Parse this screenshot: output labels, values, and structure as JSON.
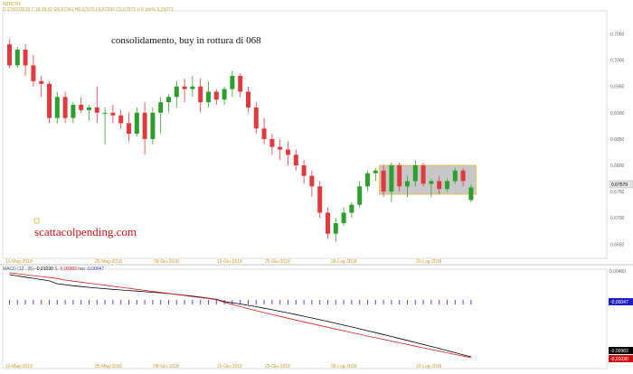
{
  "header": {
    "symbol": "NZDCHF",
    "date": "27/07/2018",
    "time": "16:18:01",
    "open_label": "O",
    "open": "0,67341",
    "high_label": "H",
    "high": "0,67625",
    "low_label": "L",
    "low": "0,67297",
    "close_label": "C",
    "close": "0,67579",
    "volume_label": "V",
    "volume": "0",
    "var_label": "Var%",
    "var": "0,25071"
  },
  "annotation": "consolidamento, buy in rottura di 068",
  "watermark": "scattacolpending.com",
  "price_axis": {
    "ticks": [
      "0,7050",
      "0,7000",
      "0,6950",
      "0,6900",
      "0,6850",
      "0,6800",
      "0,6750",
      "0,6700",
      "0,6650"
    ],
    "current_price_label": "0,67579"
  },
  "date_axis": {
    "ticks": [
      "10-Mag-2018",
      "25-Mag-2018",
      "08-Giu-2018",
      "15-Giu-2018",
      "25-Giu-2018",
      "09-Lug-2018",
      "20-Lug-2018"
    ]
  },
  "macd": {
    "label": "MACD",
    "params": "(12 , 26)",
    "macd_value": "-0,01030",
    "signal_label": "S",
    "signal_value": "-0,00983",
    "hist_label": "hist",
    "hist_value": "-0,00047",
    "axis_top": "0,00460",
    "hist_box": "-0,00047",
    "signal_box": "-0,00983",
    "macd_box": "-0,01030"
  },
  "colors": {
    "bull": "#2ca02c",
    "bear": "#e0393e",
    "rect_fill": "#c8c8c8",
    "rect_border": "#e8b830",
    "macd_line": "#000000",
    "signal_line": "#cc2020",
    "hist_bar": "#3a3ad0",
    "header_text": "#c8a032",
    "watermark": "#cc1111"
  },
  "chart_data": {
    "type": "candlestick",
    "ylim": [
      0.663,
      0.708
    ],
    "candles": [
      {
        "o": 0.703,
        "h": 0.704,
        "l": 0.6985,
        "c": 0.699
      },
      {
        "o": 0.699,
        "h": 0.7025,
        "l": 0.6985,
        "c": 0.702
      },
      {
        "o": 0.702,
        "h": 0.703,
        "l": 0.697,
        "c": 0.699
      },
      {
        "o": 0.699,
        "h": 0.701,
        "l": 0.695,
        "c": 0.696
      },
      {
        "o": 0.696,
        "h": 0.697,
        "l": 0.693,
        "c": 0.6955
      },
      {
        "o": 0.6955,
        "h": 0.696,
        "l": 0.688,
        "c": 0.689
      },
      {
        "o": 0.689,
        "h": 0.694,
        "l": 0.688,
        "c": 0.693
      },
      {
        "o": 0.693,
        "h": 0.694,
        "l": 0.688,
        "c": 0.689
      },
      {
        "o": 0.689,
        "h": 0.692,
        "l": 0.688,
        "c": 0.6915
      },
      {
        "o": 0.6915,
        "h": 0.693,
        "l": 0.69,
        "c": 0.6905
      },
      {
        "o": 0.6905,
        "h": 0.6915,
        "l": 0.6885,
        "c": 0.691
      },
      {
        "o": 0.691,
        "h": 0.695,
        "l": 0.688,
        "c": 0.69
      },
      {
        "o": 0.69,
        "h": 0.691,
        "l": 0.684,
        "c": 0.69
      },
      {
        "o": 0.69,
        "h": 0.6915,
        "l": 0.688,
        "c": 0.6895
      },
      {
        "o": 0.6895,
        "h": 0.6905,
        "l": 0.687,
        "c": 0.688
      },
      {
        "o": 0.688,
        "h": 0.69,
        "l": 0.6845,
        "c": 0.686
      },
      {
        "o": 0.686,
        "h": 0.691,
        "l": 0.6855,
        "c": 0.69
      },
      {
        "o": 0.69,
        "h": 0.692,
        "l": 0.682,
        "c": 0.685
      },
      {
        "o": 0.685,
        "h": 0.691,
        "l": 0.684,
        "c": 0.69
      },
      {
        "o": 0.69,
        "h": 0.693,
        "l": 0.686,
        "c": 0.692
      },
      {
        "o": 0.692,
        "h": 0.6935,
        "l": 0.69,
        "c": 0.693
      },
      {
        "o": 0.693,
        "h": 0.696,
        "l": 0.691,
        "c": 0.695
      },
      {
        "o": 0.695,
        "h": 0.6965,
        "l": 0.692,
        "c": 0.6945
      },
      {
        "o": 0.6945,
        "h": 0.697,
        "l": 0.693,
        "c": 0.695
      },
      {
        "o": 0.695,
        "h": 0.6965,
        "l": 0.69,
        "c": 0.692
      },
      {
        "o": 0.692,
        "h": 0.696,
        "l": 0.691,
        "c": 0.694
      },
      {
        "o": 0.694,
        "h": 0.6945,
        "l": 0.6915,
        "c": 0.6925
      },
      {
        "o": 0.6925,
        "h": 0.695,
        "l": 0.6915,
        "c": 0.6945
      },
      {
        "o": 0.6945,
        "h": 0.698,
        "l": 0.693,
        "c": 0.697
      },
      {
        "o": 0.697,
        "h": 0.6975,
        "l": 0.693,
        "c": 0.694
      },
      {
        "o": 0.694,
        "h": 0.695,
        "l": 0.69,
        "c": 0.691
      },
      {
        "o": 0.691,
        "h": 0.692,
        "l": 0.686,
        "c": 0.687
      },
      {
        "o": 0.687,
        "h": 0.689,
        "l": 0.684,
        "c": 0.685
      },
      {
        "o": 0.685,
        "h": 0.686,
        "l": 0.682,
        "c": 0.6835
      },
      {
        "o": 0.6835,
        "h": 0.685,
        "l": 0.681,
        "c": 0.683
      },
      {
        "o": 0.683,
        "h": 0.6845,
        "l": 0.68,
        "c": 0.682
      },
      {
        "o": 0.682,
        "h": 0.683,
        "l": 0.679,
        "c": 0.68
      },
      {
        "o": 0.68,
        "h": 0.681,
        "l": 0.6765,
        "c": 0.678
      },
      {
        "o": 0.678,
        "h": 0.679,
        "l": 0.674,
        "c": 0.676
      },
      {
        "o": 0.676,
        "h": 0.677,
        "l": 0.67,
        "c": 0.671
      },
      {
        "o": 0.671,
        "h": 0.672,
        "l": 0.666,
        "c": 0.667
      },
      {
        "o": 0.667,
        "h": 0.67,
        "l": 0.6655,
        "c": 0.669
      },
      {
        "o": 0.669,
        "h": 0.672,
        "l": 0.6685,
        "c": 0.671
      },
      {
        "o": 0.671,
        "h": 0.673,
        "l": 0.67,
        "c": 0.6725
      },
      {
        "o": 0.6725,
        "h": 0.677,
        "l": 0.672,
        "c": 0.676
      },
      {
        "o": 0.676,
        "h": 0.679,
        "l": 0.675,
        "c": 0.6785
      },
      {
        "o": 0.6785,
        "h": 0.6795,
        "l": 0.677,
        "c": 0.679
      },
      {
        "o": 0.679,
        "h": 0.68,
        "l": 0.674,
        "c": 0.675
      },
      {
        "o": 0.675,
        "h": 0.6805,
        "l": 0.673,
        "c": 0.68
      },
      {
        "o": 0.68,
        "h": 0.6805,
        "l": 0.675,
        "c": 0.676
      },
      {
        "o": 0.676,
        "h": 0.678,
        "l": 0.674,
        "c": 0.677
      },
      {
        "o": 0.677,
        "h": 0.681,
        "l": 0.676,
        "c": 0.68
      },
      {
        "o": 0.68,
        "h": 0.6805,
        "l": 0.676,
        "c": 0.6765
      },
      {
        "o": 0.6765,
        "h": 0.6775,
        "l": 0.674,
        "c": 0.677
      },
      {
        "o": 0.677,
        "h": 0.678,
        "l": 0.6745,
        "c": 0.6755
      },
      {
        "o": 0.6755,
        "h": 0.6775,
        "l": 0.675,
        "c": 0.677
      },
      {
        "o": 0.677,
        "h": 0.6795,
        "l": 0.6765,
        "c": 0.679
      },
      {
        "o": 0.679,
        "h": 0.6795,
        "l": 0.676,
        "c": 0.677
      },
      {
        "o": 0.6734,
        "h": 0.6763,
        "l": 0.673,
        "c": 0.6758
      }
    ],
    "consolidation_box": {
      "from_index": 47,
      "to_index": 58,
      "high": 0.68,
      "low": 0.6745
    }
  }
}
